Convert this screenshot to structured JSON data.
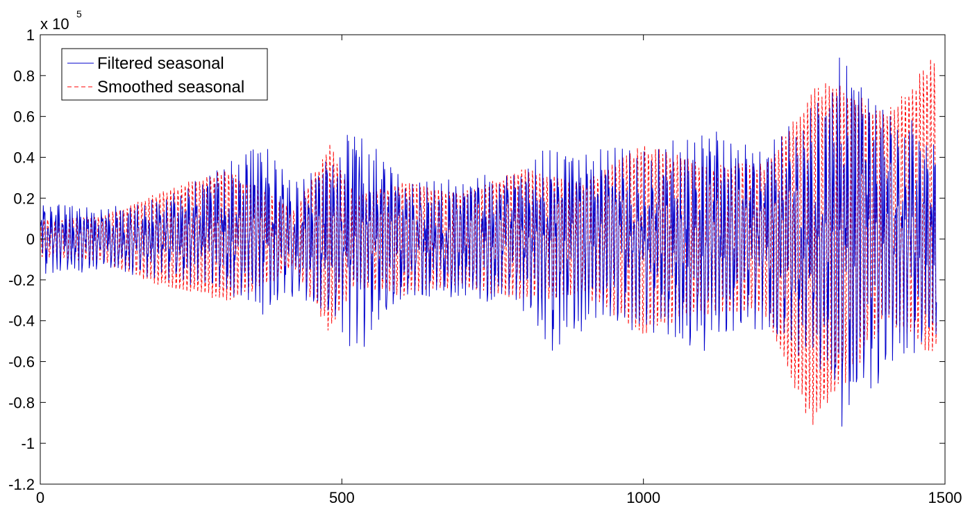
{
  "chart_data": {
    "type": "line",
    "title": "",
    "xlabel": "",
    "ylabel": "",
    "xlim": [
      0,
      1500
    ],
    "ylim": [
      -1.2,
      1.0
    ],
    "y_scale_exponent": {
      "base": "x 10",
      "power": "5"
    },
    "x_ticks": [
      "0",
      "500",
      "1000",
      "1500"
    ],
    "y_ticks": [
      "1",
      "0.8",
      "0.6",
      "0.4",
      "0.2",
      "0",
      "-0.2",
      "-0.4",
      "-0.6",
      "-0.8",
      "-1",
      "-1.2"
    ],
    "grid": false,
    "legend_position": "top-left",
    "n_points": 1487,
    "series": [
      {
        "name": "Filtered seasonal",
        "color": "#0000cc",
        "line_style": "solid",
        "description_values": "oscillating seasonal component, amplitude envelope (x1e5) at x-anchors",
        "envelope_x": [
          0,
          100,
          200,
          300,
          360,
          420,
          500,
          520,
          600,
          700,
          800,
          850,
          900,
          1000,
          1100,
          1200,
          1300,
          1330,
          1400,
          1480,
          1487
        ],
        "envelope_amplitude": [
          0.2,
          0.15,
          0.2,
          0.3,
          0.45,
          0.3,
          0.45,
          0.6,
          0.3,
          0.3,
          0.35,
          0.55,
          0.45,
          0.45,
          0.55,
          0.45,
          0.7,
          0.95,
          0.7,
          0.5,
          0.5
        ],
        "envelope_center": [
          0,
          0,
          0,
          0.05,
          0.05,
          0,
          0,
          0,
          0,
          0,
          0,
          -0.05,
          0,
          0,
          0,
          0,
          0,
          0,
          0,
          0,
          0
        ]
      },
      {
        "name": "Smoothed seasonal",
        "color": "#ff0000",
        "line_style": "dashed",
        "description_values": "smoothed seasonal component, amplitude envelope (x1e5) at x-anchors",
        "envelope_x": [
          0,
          100,
          200,
          300,
          350,
          420,
          480,
          520,
          600,
          700,
          800,
          900,
          1000,
          1100,
          1200,
          1280,
          1320,
          1400,
          1480,
          1487
        ],
        "envelope_amplitude": [
          0.1,
          0.12,
          0.25,
          0.35,
          0.3,
          0.15,
          0.5,
          0.25,
          0.3,
          0.25,
          0.35,
          0.3,
          0.5,
          0.4,
          0.4,
          0.9,
          0.85,
          0.55,
          0.8,
          0.7
        ],
        "envelope_center": [
          0,
          0,
          0,
          0.02,
          0.0,
          0,
          0,
          0,
          0,
          0,
          0.02,
          0,
          0,
          0,
          0,
          -0.1,
          0,
          0.1,
          0.15,
          0.15
        ]
      }
    ]
  }
}
